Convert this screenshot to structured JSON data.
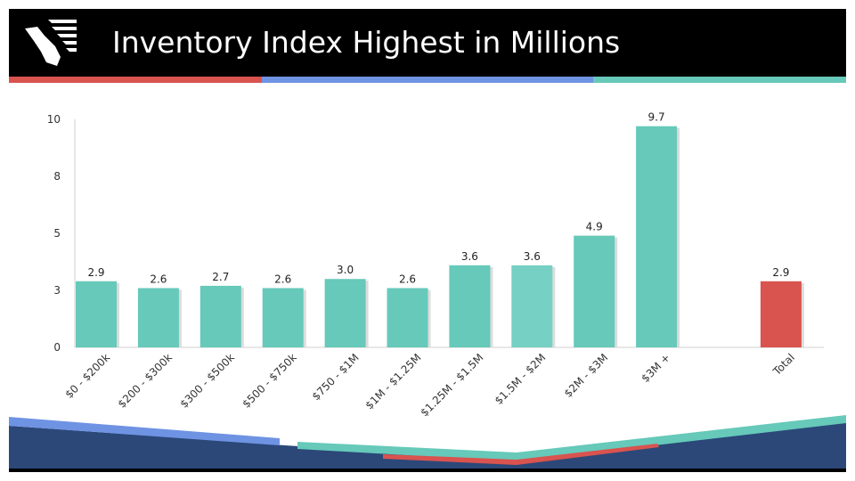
{
  "header": {
    "title": "Inventory Index Highest in Millions"
  },
  "colors": {
    "header_bg": "#000000",
    "accent_red": "#d9534f",
    "accent_blue": "#6f93e3",
    "accent_teal": "#66c9b9",
    "bar_teal": "#66c9b9",
    "bar_highlight": "#76d0c4",
    "bar_total": "#d9534f",
    "footer_navy": "#2b4879"
  },
  "chart_data": {
    "type": "bar",
    "title": "",
    "xlabel": "",
    "ylabel": "",
    "ylim": [
      0,
      10
    ],
    "y_ticks": [
      "0",
      "3",
      "5",
      "8",
      "10"
    ],
    "categories": [
      "$0 - $200k",
      "$200 - $300k",
      "$300 - $500k",
      "$500 - $750k",
      "$750 - $1M",
      "$1M - $1.25M",
      "$1.25M - $1.5M",
      "$1.5M - $2M",
      "$2M - $3M",
      "$3M +",
      "",
      "Total"
    ],
    "values": [
      2.9,
      2.6,
      2.7,
      2.6,
      3.0,
      2.6,
      3.6,
      3.6,
      4.9,
      9.7,
      null,
      2.9
    ],
    "data_labels": [
      "2.9",
      "2.6",
      "2.7",
      "2.6",
      "3.0",
      "2.6",
      "3.6",
      "3.6",
      "4.9",
      "9.7",
      "",
      "2.9"
    ],
    "grid": false,
    "legend": "none"
  }
}
